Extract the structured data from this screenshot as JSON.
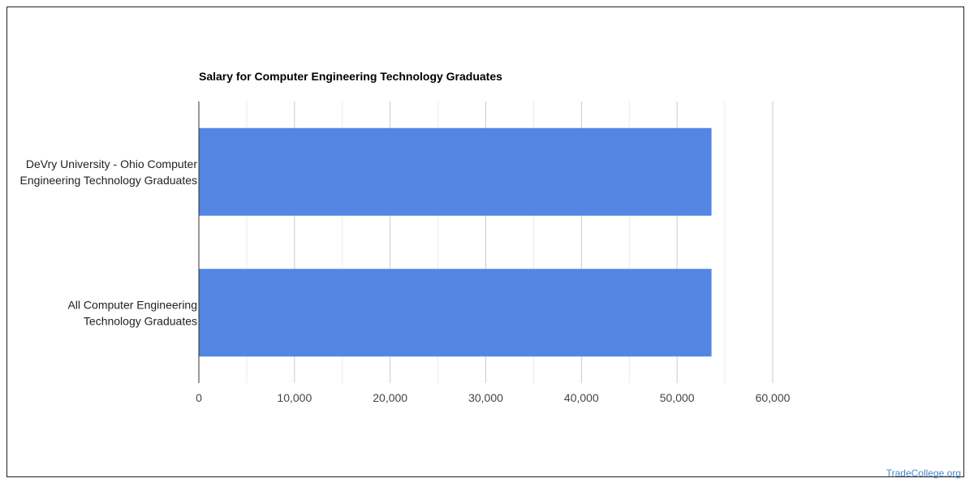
{
  "chart_data": {
    "type": "bar",
    "orientation": "horizontal",
    "title": "Salary for Computer Engineering Technology Graduates",
    "categories": [
      [
        "DeVry University - Ohio Computer",
        "Engineering Technology Graduates"
      ],
      [
        "All Computer Engineering",
        "Technology Graduates"
      ]
    ],
    "values": [
      53600,
      53600
    ],
    "xlim": [
      0,
      60000
    ],
    "xticks": [
      "0",
      "10,000",
      "20,000",
      "30,000",
      "40,000",
      "50,000",
      "60,000"
    ],
    "grid": true,
    "bar_color": "#5286e2"
  },
  "footer": {
    "brand": "TradeCollege.org"
  }
}
